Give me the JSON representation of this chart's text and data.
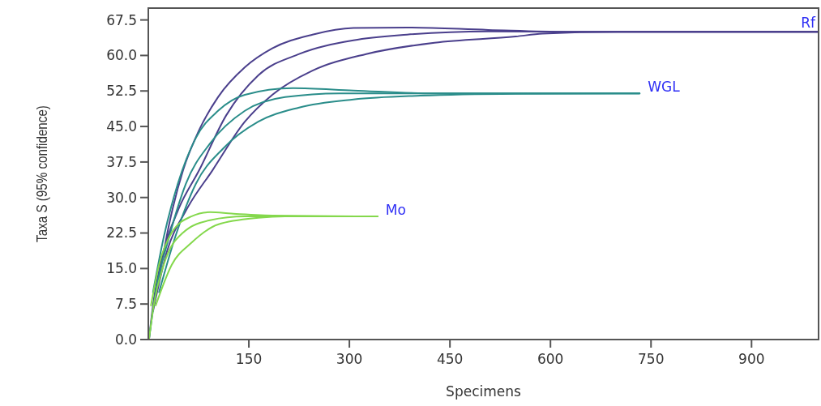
{
  "chart_data": {
    "type": "line",
    "xlabel": "Specimens",
    "ylabel": "Taxa S (95% confidence)",
    "xlim": [
      0,
      1000
    ],
    "ylim": [
      0,
      70
    ],
    "xticks": [
      150,
      300,
      450,
      600,
      750,
      900
    ],
    "yticks": [
      {
        "value": 0,
        "label": "0.0"
      },
      {
        "value": 7.5,
        "label": "7.5"
      },
      {
        "value": 15,
        "label": "15.0"
      },
      {
        "value": 22.5,
        "label": "22.5"
      },
      {
        "value": 30,
        "label": "30.0"
      },
      {
        "value": 37.5,
        "label": "37.5"
      },
      {
        "value": 45,
        "label": "45.0"
      },
      {
        "value": 52.5,
        "label": "52.5"
      },
      {
        "value": 60,
        "label": "60.0"
      },
      {
        "value": 67.5,
        "label": "67.5"
      }
    ],
    "grid": false,
    "marker": "none",
    "line_style": "solid",
    "series": [
      {
        "color": "#4a3f8c",
        "x": [
          16,
          31,
          52,
          76,
          104,
          144,
          185,
          245,
          306,
          386,
          507,
          624,
          1000
        ],
        "values": [
          13,
          24.3,
          35.8,
          44.3,
          51.2,
          57.5,
          61.5,
          64.4,
          65.8,
          65.9,
          65.4,
          65,
          65
        ]
      },
      {
        "name": "Rf",
        "color": "#4a3f8c",
        "x": [
          1,
          7,
          23,
          44,
          76,
          116,
          164,
          225,
          306,
          386,
          507,
          624,
          1000
        ],
        "values": [
          0,
          7.2,
          18.7,
          27.2,
          35.8,
          47.3,
          55.8,
          60.3,
          63.2,
          64.4,
          65.1,
          65,
          65
        ]
      },
      {
        "color": "#4a3f8c",
        "x": [
          7,
          28,
          56,
          96,
          144,
          185,
          245,
          325,
          427,
          548,
          588,
          700,
          1000
        ],
        "values": [
          6,
          18.7,
          27.2,
          35.8,
          46,
          51.7,
          56.8,
          60.3,
          62.7,
          64,
          64.6,
          65,
          65
        ]
      },
      {
        "color": "#2a8d8a",
        "x": [
          7,
          23,
          44,
          71,
          104,
          144,
          216,
          306,
          427,
          733
        ],
        "values": [
          10,
          21.6,
          32.9,
          42.6,
          48.3,
          51.7,
          53.1,
          52.6,
          52,
          52
        ]
      },
      {
        "name": "WGL",
        "color": "#2a8d8a",
        "x": [
          1,
          11,
          31,
          56,
          92,
          144,
          204,
          285,
          733
        ],
        "values": [
          0,
          10,
          21.6,
          32.9,
          41.4,
          48.3,
          51.2,
          52,
          52
        ]
      },
      {
        "color": "#2a8d8a",
        "x": [
          16,
          40,
          71,
          112,
          164,
          225,
          306,
          406,
          548,
          733
        ],
        "values": [
          10,
          21.6,
          32.9,
          40.4,
          46,
          49,
          50.7,
          51.5,
          51.9,
          52
        ]
      },
      {
        "color": "#84d84c",
        "x": [
          4,
          16,
          35,
          64,
          92,
          124,
          185,
          342
        ],
        "values": [
          7.2,
          15.8,
          22.6,
          26,
          26.9,
          26.6,
          26.2,
          26
        ]
      },
      {
        "name": "Mo",
        "color": "#84d84c",
        "x": [
          1,
          8,
          23,
          52,
          92,
          144,
          342
        ],
        "values": [
          0,
          7.2,
          15.8,
          22.6,
          25.2,
          26,
          26
        ]
      },
      {
        "color": "#84d84c",
        "x": [
          11,
          35,
          64,
          104,
          164,
          204,
          342
        ],
        "values": [
          7.2,
          15.8,
          20.4,
          24.3,
          25.7,
          26,
          26
        ]
      }
    ]
  }
}
